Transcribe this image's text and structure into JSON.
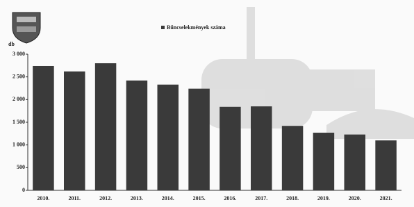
{
  "chart_data": {
    "type": "bar",
    "y_label": "db",
    "legend": "Bűncselekmények száma",
    "categories": [
      "2010.",
      "2011.",
      "2012.",
      "2013.",
      "2014.",
      "2015.",
      "2016.",
      "2017.",
      "2018.",
      "2019.",
      "2020.",
      "2021."
    ],
    "values": [
      2740,
      2620,
      2800,
      2420,
      2330,
      2240,
      1840,
      1850,
      1420,
      1270,
      1230,
      1100
    ],
    "color": "#3a3a3a",
    "ylim": [
      0,
      3000
    ],
    "yticks": [
      0,
      500,
      {
        "value": 1000,
        "label": "1 000"
      },
      {
        "value": 1500,
        "label": "1 500"
      },
      {
        "value": 2000,
        "label": "2 000"
      },
      {
        "value": 2500,
        "label": "2 500"
      },
      {
        "value": 3000,
        "label": "3 000"
      }
    ]
  }
}
